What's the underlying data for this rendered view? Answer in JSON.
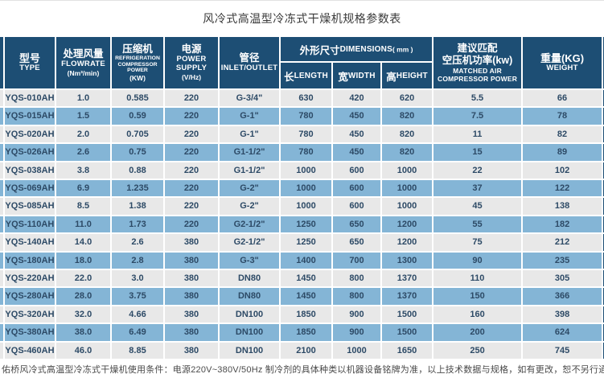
{
  "title": "风冷式高温型冷冻式干燥机规格参数表",
  "colors": {
    "navy": "#1d4e74",
    "blue": "#84b5d6",
    "gray": "#e8e8e8"
  },
  "table": {
    "headers": {
      "type_zh": "型号",
      "type_en": "TYPE",
      "flowrate_zh": "处理风量",
      "flowrate_en": "FLOWRATE",
      "flowrate_unit": "(Nm³/min)",
      "compressor_zh": "压缩机",
      "compressor_en": "REFRIGERATION COMPRESSOR POWER",
      "compressor_unit": "(KW)",
      "power_zh": "电源",
      "power_en": "POWER SUPPLY",
      "power_unit": "(V/Hz)",
      "pipe_zh": "管径",
      "pipe_en": "INLET/OUTLET",
      "dims_zh": "外形尺寸",
      "dims_en": "DIMENSIONS",
      "dims_unit": "( mm )",
      "length_zh": "长",
      "length_en": "LENGTH",
      "width_zh": "宽",
      "width_en": "WIDTH",
      "height_zh": "高",
      "height_en": "HEIGHT",
      "matched_zh_1": "建议匹配",
      "matched_zh_2": "空压机功率(kw)",
      "matched_en_1": "MATCHED AIR",
      "matched_en_2": "COMPRESSOR POWER",
      "weight_zh": "重量(KG)",
      "weight_en": "WEIGHT"
    },
    "rows": [
      [
        "YQS-010AH",
        "1.0",
        "0.585",
        "220",
        "G-3/4\"",
        "630",
        "420",
        "620",
        "5.5",
        "66"
      ],
      [
        "YQS-015AH",
        "1.5",
        "0.59",
        "220",
        "G-1\"",
        "780",
        "450",
        "820",
        "7.5",
        "78"
      ],
      [
        "YQS-020AH",
        "2.0",
        "0.705",
        "220",
        "G-1\"",
        "780",
        "450",
        "820",
        "11",
        "82"
      ],
      [
        "YQS-026AH",
        "2.6",
        "0.75",
        "220",
        "G1-1/2\"",
        "780",
        "450",
        "820",
        "15",
        "89"
      ],
      [
        "YQS-038AH",
        "3.8",
        "0.88",
        "220",
        "G1-1/2\"",
        "1000",
        "600",
        "1000",
        "22",
        "102"
      ],
      [
        "YQS-069AH",
        "6.9",
        "1.235",
        "220",
        "G-2\"",
        "1000",
        "600",
        "1000",
        "37",
        "122"
      ],
      [
        "YQS-085AH",
        "8.5",
        "1.38",
        "220",
        "G-2\"",
        "1000",
        "600",
        "1000",
        "45",
        "138"
      ],
      [
        "YQS-110AH",
        "11.0",
        "1.73",
        "220",
        "G2-1/2\"",
        "1250",
        "650",
        "1200",
        "55",
        "182"
      ],
      [
        "YQS-140AH",
        "14.0",
        "2.6",
        "380",
        "G2-1/2\"",
        "1250",
        "650",
        "1200",
        "75",
        "212"
      ],
      [
        "YQS-180AH",
        "18.0",
        "2.8",
        "380",
        "G-3\"",
        "1400",
        "700",
        "1300",
        "90",
        "235"
      ],
      [
        "YQS-220AH",
        "22.0",
        "3.0",
        "380",
        "DN80",
        "1450",
        "800",
        "1370",
        "110",
        "305"
      ],
      [
        "YQS-280AH",
        "28.0",
        "3.75",
        "380",
        "DN80",
        "1450",
        "800",
        "1370",
        "150",
        "366"
      ],
      [
        "YQS-320AH",
        "32.0",
        "4.66",
        "380",
        "DN100",
        "1850",
        "900",
        "1500",
        "160",
        "398"
      ],
      [
        "YQS-380AH",
        "38.0",
        "6.49",
        "380",
        "DN100",
        "1850",
        "900",
        "1500",
        "200",
        "624"
      ],
      [
        "YQS-460AH",
        "46.0",
        "8.85",
        "380",
        "DN100",
        "2100",
        "1000",
        "1650",
        "250",
        "745"
      ]
    ]
  },
  "footer": "佑桥风冷式高温型冷冻式干燥机使用条件：电源220V~380V/50Hz 制冷剂的具体种类以机器设备铭牌为准，以上技术数据与规格，如有更改，恕不另行通知，具体数据以实际为准。"
}
